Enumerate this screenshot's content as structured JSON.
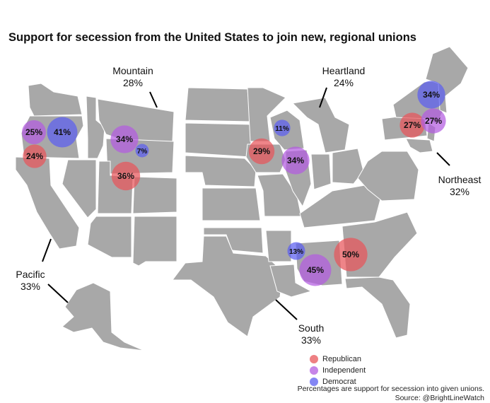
{
  "title": "Support for secession from the United States to join new, regional unions",
  "colors": {
    "state_fill": "#a8a8a8",
    "state_border": "#ffffff",
    "Republican": "#e8555a",
    "Independent": "#b35ce0",
    "Democrat": "#5b5ef0"
  },
  "regions": [
    {
      "key": "mountain",
      "name": "Mountain",
      "pct": "28%"
    },
    {
      "key": "heartland",
      "name": "Heartland",
      "pct": "24%"
    },
    {
      "key": "northeast",
      "name": "Northeast",
      "pct": "32%"
    },
    {
      "key": "pacific",
      "name": "Pacific",
      "pct": "33%"
    },
    {
      "key": "south",
      "name": "South",
      "pct": "33%"
    }
  ],
  "bubbles": [
    {
      "region": "pacific",
      "party": "Independent",
      "value": 25,
      "label": "25%"
    },
    {
      "region": "pacific",
      "party": "Democrat",
      "value": 41,
      "label": "41%"
    },
    {
      "region": "pacific",
      "party": "Republican",
      "value": 24,
      "label": "24%"
    },
    {
      "region": "mountain",
      "party": "Independent",
      "value": 34,
      "label": "34%"
    },
    {
      "region": "mountain",
      "party": "Democrat",
      "value": 7,
      "label": "7%"
    },
    {
      "region": "mountain",
      "party": "Republican",
      "value": 36,
      "label": "36%"
    },
    {
      "region": "heartland",
      "party": "Democrat",
      "value": 11,
      "label": "11%"
    },
    {
      "region": "heartland",
      "party": "Republican",
      "value": 29,
      "label": "29%"
    },
    {
      "region": "heartland",
      "party": "Independent",
      "value": 34,
      "label": "34%"
    },
    {
      "region": "northeast",
      "party": "Democrat",
      "value": 34,
      "label": "34%"
    },
    {
      "region": "northeast",
      "party": "Republican",
      "value": 27,
      "label": "27%"
    },
    {
      "region": "northeast",
      "party": "Independent",
      "value": 27,
      "label": "27%"
    },
    {
      "region": "south",
      "party": "Democrat",
      "value": 13,
      "label": "13%"
    },
    {
      "region": "south",
      "party": "Independent",
      "value": 45,
      "label": "45%"
    },
    {
      "region": "south",
      "party": "Republican",
      "value": 50,
      "label": "50%"
    }
  ],
  "legend": [
    "Republican",
    "Independent",
    "Democrat"
  ],
  "footnote": {
    "line1": "Percentages are support for secession into given unions.",
    "line2": "Source: @BrightLineWatch"
  }
}
